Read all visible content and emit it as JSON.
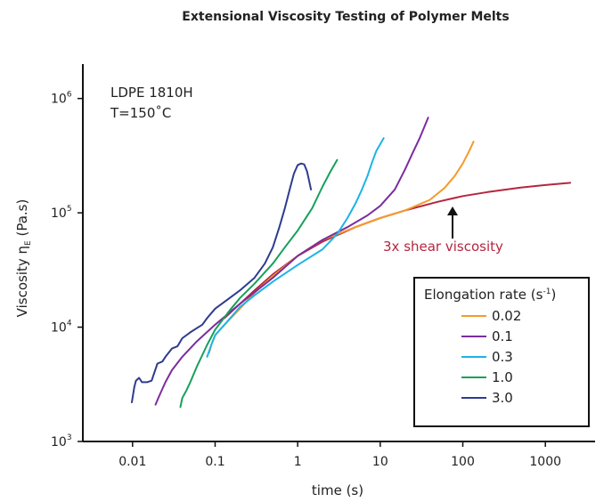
{
  "chart_data": {
    "type": "line",
    "title": "Extensional Viscosity Testing of Polymer Melts",
    "xlabel": "time (s)",
    "ylabel": "Viscosity η",
    "ylabel_sub": "E",
    "ylabel_units": " (Pa.s)",
    "x_scale": "log",
    "y_scale": "log",
    "xlim": [
      0.0025,
      4000
    ],
    "ylim": [
      1000,
      2000000
    ],
    "x_ticks": [
      {
        "value": 0.01,
        "label": "0.01"
      },
      {
        "value": 0.1,
        "label": "0.1"
      },
      {
        "value": 1,
        "label": "1"
      },
      {
        "value": 10,
        "label": "10"
      },
      {
        "value": 100,
        "label": "100"
      },
      {
        "value": 1000,
        "label": "1000"
      }
    ],
    "y_ticks": [
      {
        "value": 1000,
        "base": "10",
        "exp": "3"
      },
      {
        "value": 10000,
        "base": "10",
        "exp": "4"
      },
      {
        "value": 100000,
        "base": "10",
        "exp": "5"
      },
      {
        "value": 1000000,
        "base": "10",
        "exp": "6"
      }
    ],
    "grid": false,
    "sample_label": "LDPE 1810H",
    "temperature_label": "T=150˚C",
    "legend": {
      "title": "Elongation rate (s",
      "title_sup": "-1",
      "title_end": ")",
      "position": "lower-right"
    },
    "series": [
      {
        "name": "0.02",
        "color": "#F39C2B",
        "x": [
          0.085,
          0.09,
          0.1,
          0.13,
          0.2,
          0.3,
          0.5,
          1,
          2,
          5,
          10,
          20,
          40,
          60,
          80,
          100,
          120,
          135
        ],
        "y": [
          6000,
          7000,
          8500,
          10500,
          14500,
          20000,
          28000,
          42000,
          58000,
          75000,
          90000,
          105000,
          130000,
          165000,
          210000,
          270000,
          350000,
          420000
        ]
      },
      {
        "name": "0.1",
        "color": "#7B2D9E",
        "x": [
          0.019,
          0.021,
          0.025,
          0.03,
          0.04,
          0.06,
          0.1,
          0.2,
          0.5,
          1,
          2,
          4,
          7,
          10,
          15,
          20,
          25,
          30,
          38
        ],
        "y": [
          2100,
          2500,
          3300,
          4200,
          5500,
          7500,
          10500,
          16000,
          27000,
          42000,
          58000,
          75000,
          95000,
          115000,
          160000,
          240000,
          340000,
          450000,
          680000
        ]
      },
      {
        "name": "0.3",
        "color": "#1DB3E8",
        "x": [
          0.08,
          0.09,
          0.1,
          0.13,
          0.2,
          0.3,
          0.5,
          1,
          2,
          3,
          4,
          5,
          6,
          7,
          8,
          9,
          11
        ],
        "y": [
          5500,
          7000,
          8500,
          10500,
          15000,
          19000,
          25000,
          35000,
          48000,
          65000,
          90000,
          120000,
          160000,
          210000,
          280000,
          350000,
          450000
        ]
      },
      {
        "name": "1.0",
        "color": "#17A05A",
        "x": [
          0.038,
          0.04,
          0.045,
          0.05,
          0.06,
          0.08,
          0.1,
          0.15,
          0.2,
          0.3,
          0.5,
          0.7,
          1,
          1.5,
          2,
          2.5,
          3
        ],
        "y": [
          2000,
          2400,
          2800,
          3300,
          4500,
          7000,
          9500,
          14000,
          18000,
          24000,
          36000,
          50000,
          70000,
          110000,
          170000,
          230000,
          290000
        ]
      },
      {
        "name": "3.0",
        "color": "#2E3B8F",
        "x": [
          0.0098,
          0.0105,
          0.011,
          0.012,
          0.013,
          0.015,
          0.017,
          0.02,
          0.023,
          0.025,
          0.03,
          0.035,
          0.04,
          0.05,
          0.06,
          0.07,
          0.08,
          0.1,
          0.15,
          0.2,
          0.3,
          0.4,
          0.5,
          0.6,
          0.7,
          0.8,
          0.9,
          1.0,
          1.1,
          1.2,
          1.3,
          1.4,
          1.45
        ],
        "y": [
          2200,
          3000,
          3400,
          3600,
          3300,
          3300,
          3400,
          4800,
          5000,
          5500,
          6500,
          6800,
          8000,
          9000,
          9800,
          10500,
          12000,
          14500,
          18000,
          21000,
          27000,
          36000,
          50000,
          75000,
          110000,
          160000,
          220000,
          262000,
          270000,
          265000,
          230000,
          180000,
          160000
        ]
      },
      {
        "name": "3x shear viscosity",
        "color": "#B5263F",
        "in_legend": false,
        "x": [
          0.13,
          0.2,
          0.3,
          0.5,
          1,
          2,
          5,
          10,
          20,
          50,
          100,
          200,
          500,
          1000,
          2000
        ],
        "y": [
          12000,
          16000,
          21000,
          29000,
          42000,
          56000,
          75000,
          90000,
          105000,
          125000,
          140000,
          152000,
          166000,
          175000,
          183000
        ]
      }
    ],
    "annotations": [
      {
        "text": "3x shear viscosity",
        "color": "#B5263F",
        "points_to_x": 65,
        "points_to_y": 120000
      }
    ]
  }
}
